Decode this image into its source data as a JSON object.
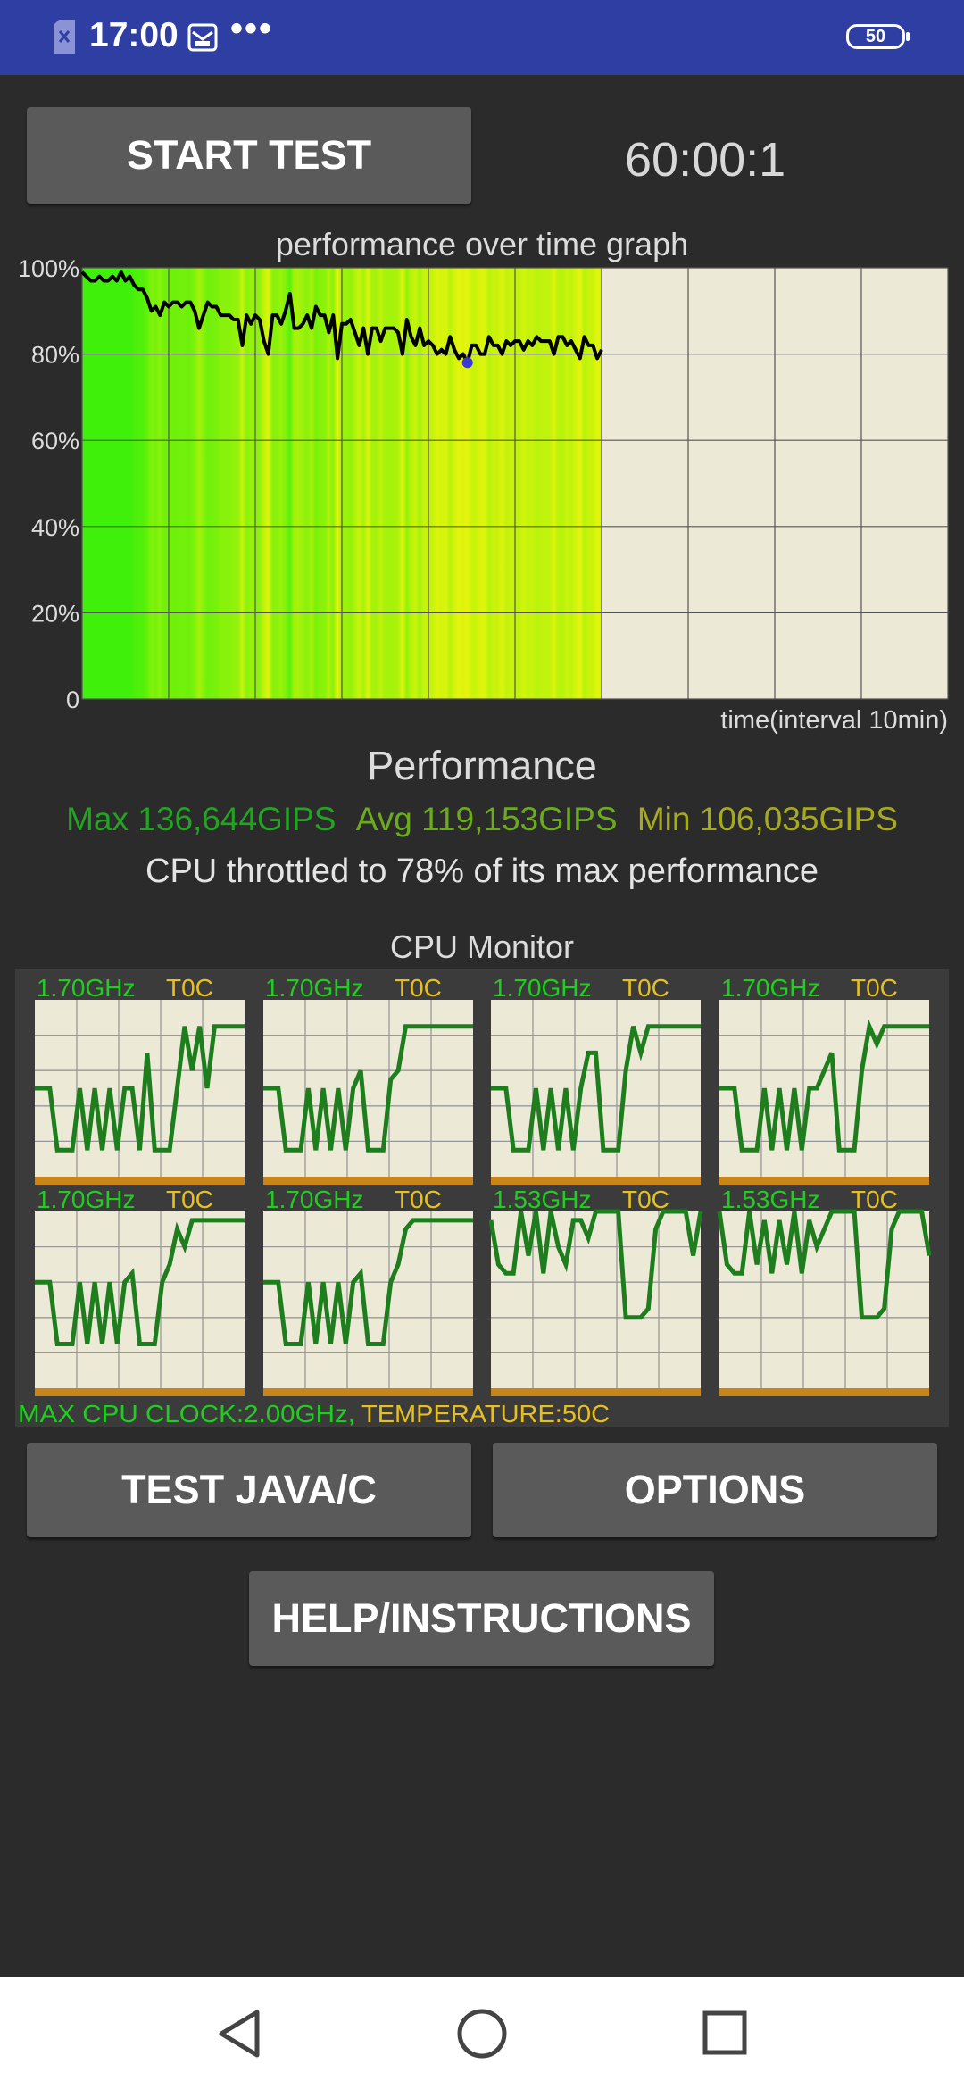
{
  "status_bar": {
    "time": "17:00",
    "overflow": "•••",
    "battery": "50"
  },
  "controls": {
    "start_label": "START TEST",
    "timer": "60:00:1",
    "test_label": "TEST JAVA/C",
    "options_label": "OPTIONS",
    "help_label": "HELP/INSTRUCTIONS"
  },
  "graph": {
    "title": "performance over time graph",
    "ytick_labels": [
      "100%",
      "80%",
      "60%",
      "40%",
      "20%",
      "0"
    ],
    "xlabel": "time(interval 10min)"
  },
  "chart_data": {
    "type": "line",
    "title": "performance over time graph",
    "xlabel": "time(interval 10min)",
    "ylabel": "",
    "ylim": [
      0,
      100
    ],
    "yticks": [
      "100%",
      "80%",
      "60%",
      "40%",
      "20%",
      "0"
    ],
    "grid": true,
    "x_fraction_complete": 0.6,
    "values": [
      99,
      98,
      97,
      97,
      98,
      97,
      97,
      98,
      97,
      99,
      97,
      98,
      96,
      95,
      95,
      93,
      90,
      91,
      89,
      92,
      91,
      92,
      92,
      91,
      92,
      92,
      90,
      86,
      89,
      92,
      91,
      91,
      89,
      89,
      89,
      88,
      88,
      82,
      89,
      87,
      89,
      88,
      83,
      80,
      89,
      89,
      87,
      90,
      94,
      86,
      86,
      87,
      89,
      86,
      91,
      89,
      89,
      85,
      89,
      79,
      87,
      87,
      88,
      85,
      82,
      86,
      80,
      86,
      86,
      83,
      86,
      86,
      86,
      85,
      80,
      88,
      84,
      82,
      86,
      82,
      83,
      82,
      80,
      81,
      80,
      84,
      81,
      79,
      80,
      78,
      82,
      82,
      80,
      80,
      84,
      82,
      82,
      80,
      83,
      82,
      83,
      83,
      81,
      83,
      82,
      84,
      83,
      83,
      83,
      80,
      84,
      84,
      82,
      83,
      81,
      79,
      84,
      82,
      82,
      79,
      81
    ],
    "colors": {
      "line": "#000000",
      "good": "#3ef00a",
      "warn": "#dcf00c",
      "background": "#ece9d6"
    }
  },
  "performance": {
    "title": "Performance",
    "max": "Max 136,644GIPS",
    "avg": "Avg 119,153GIPS",
    "min": "Min 106,035GIPS",
    "throttle": "CPU throttled to 78% of its max performance"
  },
  "cpu_monitor": {
    "title": "CPU Monitor",
    "cores": [
      {
        "freq": "1.70GHz",
        "temp": "T0C",
        "levels": [
          0.5,
          0.5,
          0.5,
          0.15,
          0.15,
          0.15,
          0.5,
          0.15,
          0.5,
          0.15,
          0.5,
          0.15,
          0.5,
          0.5,
          0.15,
          0.7,
          0.15,
          0.15,
          0.15,
          0.5,
          0.85,
          0.6,
          0.85,
          0.5,
          0.85,
          0.85,
          0.85,
          0.85,
          0.85
        ]
      },
      {
        "freq": "1.70GHz",
        "temp": "T0C",
        "levels": [
          0.5,
          0.5,
          0.5,
          0.15,
          0.15,
          0.15,
          0.5,
          0.15,
          0.5,
          0.15,
          0.5,
          0.15,
          0.5,
          0.6,
          0.15,
          0.15,
          0.15,
          0.55,
          0.6,
          0.85,
          0.85,
          0.85,
          0.85,
          0.85,
          0.85,
          0.85,
          0.85,
          0.85,
          0.85
        ]
      },
      {
        "freq": "1.70GHz",
        "temp": "T0C",
        "levels": [
          0.5,
          0.5,
          0.5,
          0.15,
          0.15,
          0.15,
          0.5,
          0.15,
          0.5,
          0.15,
          0.5,
          0.15,
          0.5,
          0.7,
          0.7,
          0.15,
          0.15,
          0.15,
          0.6,
          0.85,
          0.7,
          0.85,
          0.85,
          0.85,
          0.85,
          0.85,
          0.85,
          0.85,
          0.85
        ]
      },
      {
        "freq": "1.70GHz",
        "temp": "T0C",
        "levels": [
          0.5,
          0.5,
          0.5,
          0.15,
          0.15,
          0.15,
          0.5,
          0.15,
          0.5,
          0.15,
          0.5,
          0.15,
          0.5,
          0.5,
          0.6,
          0.7,
          0.15,
          0.15,
          0.15,
          0.6,
          0.85,
          0.75,
          0.85,
          0.85,
          0.85,
          0.85,
          0.85,
          0.85,
          0.85
        ]
      },
      {
        "freq": "1.70GHz",
        "temp": "T0C",
        "levels": [
          0.6,
          0.6,
          0.6,
          0.25,
          0.25,
          0.25,
          0.6,
          0.25,
          0.6,
          0.25,
          0.6,
          0.25,
          0.6,
          0.65,
          0.25,
          0.25,
          0.25,
          0.6,
          0.7,
          0.9,
          0.8,
          0.95,
          0.95,
          0.95,
          0.95,
          0.95,
          0.95,
          0.95,
          0.95
        ]
      },
      {
        "freq": "1.70GHz",
        "temp": "T0C",
        "levels": [
          0.6,
          0.6,
          0.6,
          0.25,
          0.25,
          0.25,
          0.6,
          0.25,
          0.6,
          0.25,
          0.6,
          0.25,
          0.6,
          0.65,
          0.25,
          0.25,
          0.25,
          0.6,
          0.7,
          0.9,
          0.95,
          0.95,
          0.95,
          0.95,
          0.95,
          0.95,
          0.95,
          0.95,
          0.95
        ]
      },
      {
        "freq": "1.53GHz",
        "temp": "T0C",
        "levels": [
          0.95,
          0.7,
          0.65,
          0.65,
          1.0,
          0.75,
          1.0,
          0.65,
          1.0,
          0.8,
          0.7,
          0.95,
          0.95,
          0.85,
          1.0,
          1.0,
          1.0,
          1.0,
          0.4,
          0.4,
          0.4,
          0.45,
          0.9,
          1.0,
          1.0,
          1.0,
          1.0,
          0.75,
          1.0
        ]
      },
      {
        "freq": "1.53GHz",
        "temp": "T0C",
        "levels": [
          1.0,
          0.7,
          0.65,
          0.65,
          1.0,
          0.7,
          0.95,
          0.65,
          0.95,
          0.7,
          1.0,
          0.65,
          0.95,
          0.8,
          0.9,
          1.0,
          1.0,
          1.0,
          1.0,
          0.4,
          0.4,
          0.4,
          0.45,
          0.9,
          1.0,
          1.0,
          1.0,
          1.0,
          0.75
        ]
      }
    ],
    "footer_clock": "MAX CPU CLOCK:2.00GHz,",
    "footer_temp": "TEMPERATURE:50C"
  }
}
